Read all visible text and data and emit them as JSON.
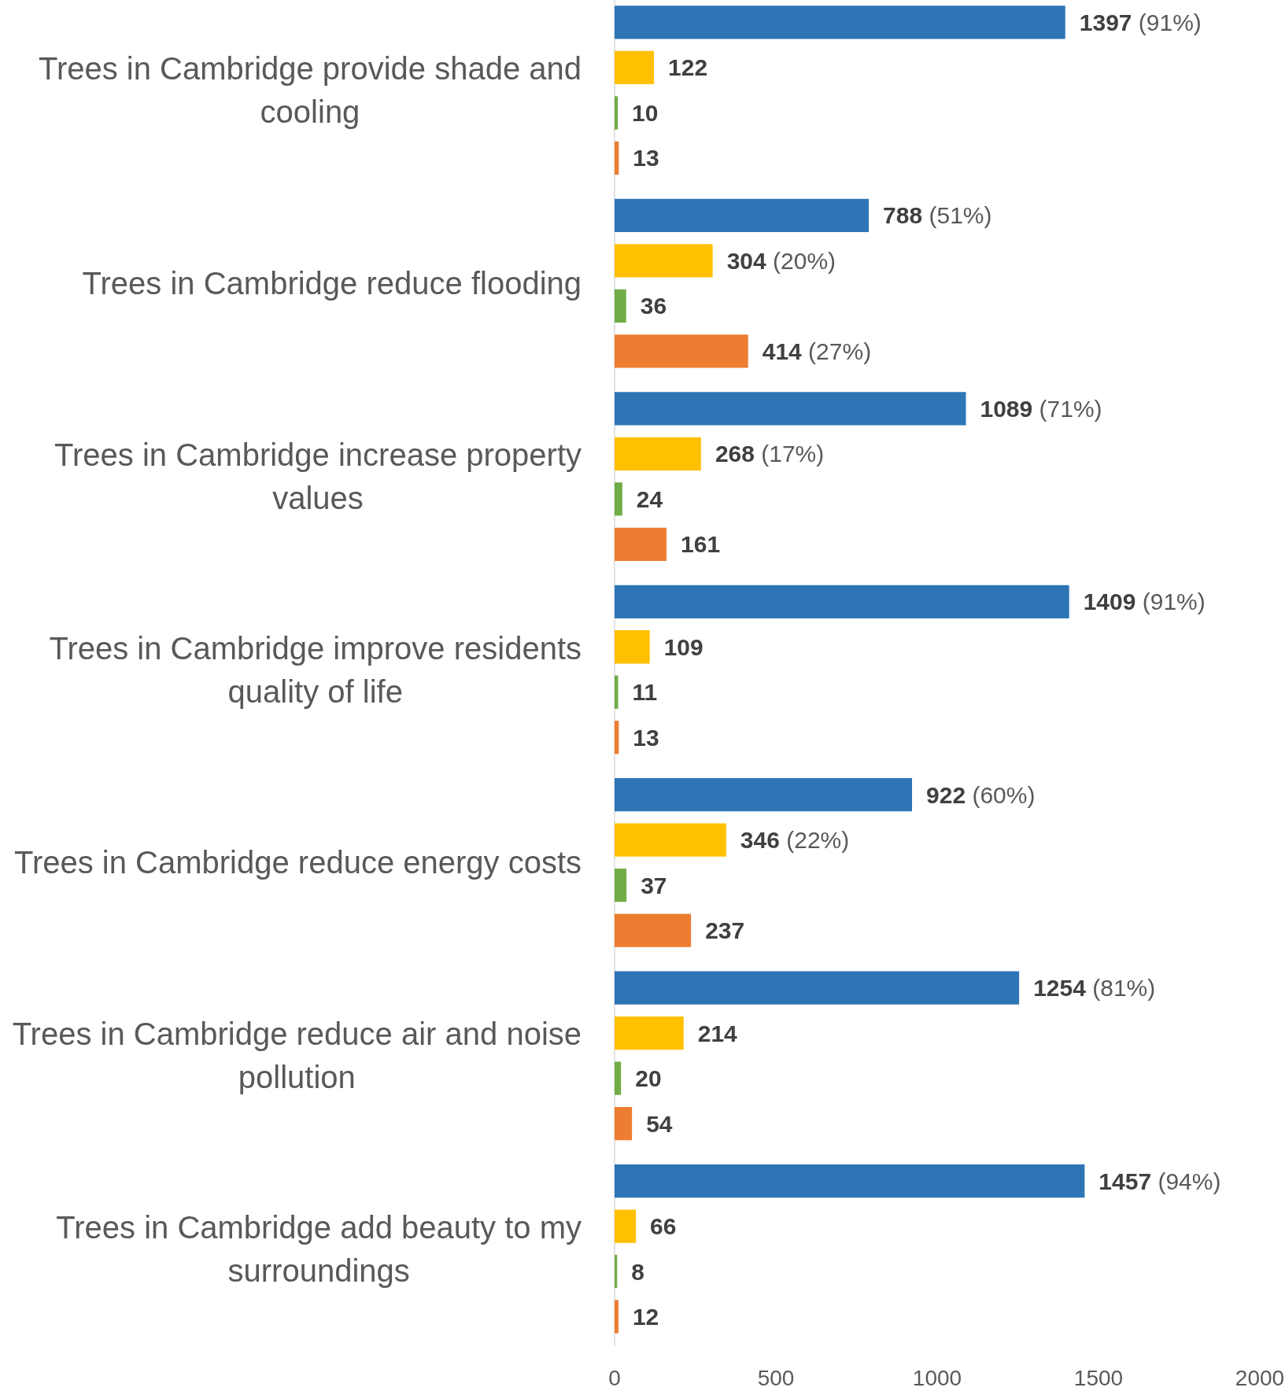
{
  "chart_data": {
    "type": "bar",
    "orientation": "horizontal",
    "categories": [
      "Trees in Cambridge provide shade and cooling",
      "Trees in Cambridge reduce flooding",
      "Trees in Cambridge increase property values",
      "Trees in Cambridge improve residents quality of life",
      "Trees in Cambridge reduce energy costs",
      "Trees in Cambridge reduce air and noise pollution",
      "Trees in Cambridge add beauty to my surroundings"
    ],
    "series": [
      {
        "color": "#2e75b6",
        "values": [
          1397,
          788,
          1089,
          1409,
          922,
          1254,
          1457
        ],
        "value_labels": [
          "1397 (91%)",
          "788 (51%)",
          "1089 (71%)",
          "1409 (91%)",
          "922 (60%)",
          "1254 (81%)",
          "1457 (94%)"
        ]
      },
      {
        "color": "#ffc000",
        "values": [
          122,
          304,
          268,
          109,
          346,
          214,
          66
        ],
        "value_labels": [
          "122",
          "304 (20%)",
          "268 (17%)",
          "109",
          "346 (22%)",
          "214",
          "66"
        ]
      },
      {
        "color": "#70ad47",
        "values": [
          10,
          36,
          24,
          11,
          37,
          20,
          8
        ],
        "value_labels": [
          "10",
          "36",
          "24",
          "11",
          "37",
          "20",
          "8"
        ]
      },
      {
        "color": "#ed7d31",
        "values": [
          13,
          414,
          161,
          13,
          237,
          54,
          12
        ],
        "value_labels": [
          "13",
          "414 (27%)",
          "161",
          "13",
          "237",
          "54",
          "12"
        ]
      }
    ],
    "xlim": [
      0,
      2000
    ],
    "xticks": [
      0,
      500,
      1000,
      1500,
      2000
    ],
    "grid": false
  }
}
